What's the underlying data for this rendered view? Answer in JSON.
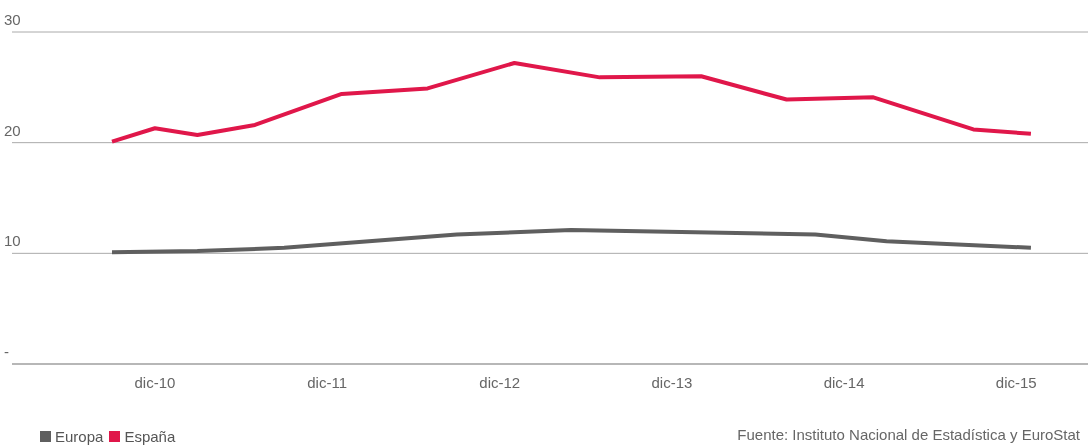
{
  "chart_data": {
    "type": "line",
    "series": [
      {
        "name": "Europa",
        "color": "#5f5f5f",
        "x": [
          "2010-09",
          "2011-03",
          "2011-09",
          "2012-09",
          "2013-05",
          "2014-10",
          "2015-03",
          "2016-01"
        ],
        "values": [
          10.1,
          10.2,
          10.5,
          11.7,
          12.1,
          11.7,
          11.1,
          10.5
        ]
      },
      {
        "name": "España",
        "color": "#e0174a",
        "x": [
          "2010-09",
          "2010-12",
          "2011-03",
          "2011-07",
          "2012-01",
          "2012-07",
          "2013-01",
          "2013-07",
          "2014-02",
          "2014-08",
          "2015-02",
          "2015-09",
          "2016-01"
        ],
        "values": [
          20.1,
          21.3,
          20.7,
          21.6,
          24.4,
          24.9,
          27.2,
          25.9,
          26.0,
          23.9,
          24.1,
          21.2,
          20.8
        ]
      }
    ],
    "xlim": [
      "2010-02",
      "2016-05"
    ],
    "xticks": [
      {
        "value": "2010-12",
        "label": "dic-10"
      },
      {
        "value": "2011-12",
        "label": "dic-11"
      },
      {
        "value": "2012-12",
        "label": "dic-12"
      },
      {
        "value": "2013-12",
        "label": "dic-13"
      },
      {
        "value": "2014-12",
        "label": "dic-14"
      },
      {
        "value": "2015-12",
        "label": "dic-15"
      }
    ],
    "ylim": [
      0,
      30
    ],
    "yticks": [
      {
        "value": 0,
        "label": "-"
      },
      10,
      20,
      30
    ],
    "grid": "y",
    "legend": "bottom left",
    "marker": "none",
    "line_style": "solid",
    "annotations": [
      "Fuente: Instituto Nacional de Estadística y EuroStat"
    ]
  }
}
